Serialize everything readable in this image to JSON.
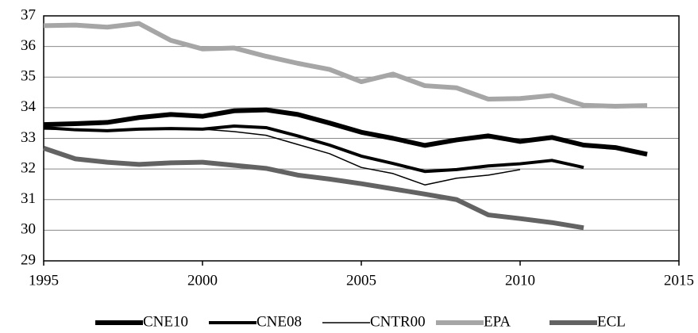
{
  "chart_data": {
    "type": "line",
    "x": [
      1995,
      1996,
      1997,
      1998,
      1999,
      2000,
      2001,
      2002,
      2003,
      2004,
      2005,
      2006,
      2007,
      2008,
      2009,
      2010,
      2011,
      2012,
      2013,
      2014
    ],
    "series": [
      {
        "name": "CNE10",
        "color": "#000000",
        "width": 6,
        "values": [
          33.45,
          33.48,
          33.52,
          33.68,
          33.78,
          33.72,
          33.9,
          33.93,
          33.78,
          33.5,
          33.2,
          33.0,
          32.77,
          32.95,
          33.08,
          32.9,
          33.03,
          32.78,
          32.7,
          32.48
        ]
      },
      {
        "name": "CNE08",
        "color": "#000000",
        "width": 4,
        "values": [
          33.35,
          33.28,
          33.25,
          33.3,
          33.32,
          33.3,
          33.4,
          33.35,
          33.08,
          32.78,
          32.42,
          32.18,
          31.92,
          31.98,
          32.1,
          32.17,
          32.28,
          32.05,
          null,
          null
        ]
      },
      {
        "name": "CNTR00",
        "color": "#000000",
        "width": 1.5,
        "values": [
          33.3,
          33.28,
          33.25,
          33.28,
          33.3,
          33.3,
          33.22,
          33.1,
          32.8,
          32.5,
          32.05,
          31.85,
          31.48,
          31.7,
          31.8,
          31.98,
          null,
          null,
          null,
          null
        ]
      },
      {
        "name": "EPA",
        "color": "#a6a6a6",
        "width": 6,
        "values": [
          36.68,
          36.7,
          36.63,
          36.75,
          36.2,
          35.92,
          35.95,
          35.68,
          35.45,
          35.25,
          34.85,
          35.1,
          34.72,
          34.65,
          34.28,
          34.3,
          34.4,
          34.08,
          34.05,
          34.07
        ]
      },
      {
        "name": "ECL",
        "color": "#636363",
        "width": 6,
        "values": [
          32.68,
          32.33,
          32.22,
          32.15,
          32.2,
          32.22,
          32.12,
          32.02,
          31.8,
          31.67,
          31.52,
          31.35,
          31.18,
          31.0,
          30.5,
          30.38,
          30.25,
          30.08,
          null,
          null
        ]
      }
    ],
    "xlim": [
      1995,
      2015
    ],
    "xticks": [
      1995,
      2000,
      2005,
      2010,
      2015
    ],
    "ylim": [
      29,
      37
    ],
    "yticks": [
      29,
      30,
      31,
      32,
      33,
      34,
      35,
      36,
      37
    ],
    "grid": true,
    "legend": "bottom"
  }
}
